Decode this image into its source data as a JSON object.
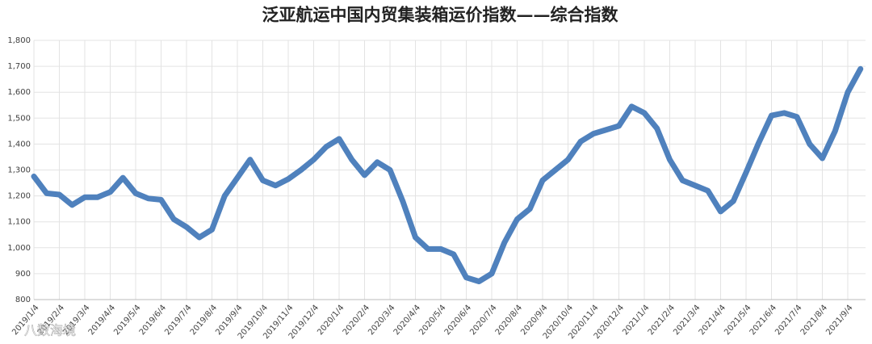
{
  "chart_data": {
    "type": "line",
    "title": "泛亚航运中国内贸集装箱运价指数——综合指数",
    "watermark": "八数海境",
    "categories": [
      "2019/1/4",
      null,
      "2019/2/4",
      null,
      "2019/3/4",
      null,
      "2019/4/4",
      null,
      "2019/5/4",
      null,
      "2019/6/4",
      null,
      "2019/7/4",
      null,
      "2019/8/4",
      null,
      "2019/9/4",
      null,
      "2019/10/4",
      null,
      "2019/11/4",
      null,
      "2019/12/4",
      null,
      "2020/1/4",
      null,
      "2020/2/4",
      null,
      "2020/3/4",
      null,
      "2020/4/4",
      null,
      "2020/5/4",
      null,
      "2020/6/4",
      null,
      "2020/7/4",
      null,
      "2020/8/4",
      null,
      "2020/9/4",
      null,
      "2020/10/4",
      null,
      "2020/11/4",
      null,
      "2020/12/4",
      null,
      "2021/1/4",
      null,
      "2021/2/4",
      null,
      "2021/3/4",
      null,
      "2021/4/4",
      null,
      "2021/5/4",
      null,
      "2021/6/4",
      null,
      "2021/7/4",
      null,
      "2021/8/4",
      null,
      "2021/9/4",
      null
    ],
    "series": [
      {
        "name": "综合指数",
        "color": "#4f81bd",
        "values": [
          1275,
          1210,
          1205,
          1165,
          1195,
          1195,
          1215,
          1270,
          1210,
          1190,
          1185,
          1110,
          1080,
          1040,
          1070,
          1200,
          1270,
          1340,
          1260,
          1240,
          1265,
          1300,
          1340,
          1390,
          1420,
          1340,
          1280,
          1330,
          1300,
          1180,
          1040,
          995,
          995,
          975,
          885,
          870,
          900,
          1020,
          1110,
          1150,
          1260,
          1300,
          1340,
          1410,
          1440,
          1455,
          1470,
          1545,
          1520,
          1460,
          1340,
          1260,
          1240,
          1220,
          1140,
          1180,
          1290,
          1405,
          1510,
          1520,
          1505,
          1400,
          1345,
          1450,
          1600,
          1690
        ]
      }
    ],
    "ylim": [
      800,
      1800
    ],
    "yticks": [
      800,
      900,
      {
        "value": 1000,
        "label": "1,000"
      },
      {
        "value": 1100,
        "label": "1,100"
      },
      {
        "value": 1200,
        "label": "1,200"
      },
      {
        "value": 1300,
        "label": "1,300"
      },
      {
        "value": 1400,
        "label": "1,400"
      },
      {
        "value": 1500,
        "label": "1,500"
      },
      {
        "value": 1600,
        "label": "1,600"
      },
      {
        "value": 1700,
        "label": "1,700"
      },
      {
        "value": 1800,
        "label": "1,800"
      }
    ],
    "grid": true
  }
}
